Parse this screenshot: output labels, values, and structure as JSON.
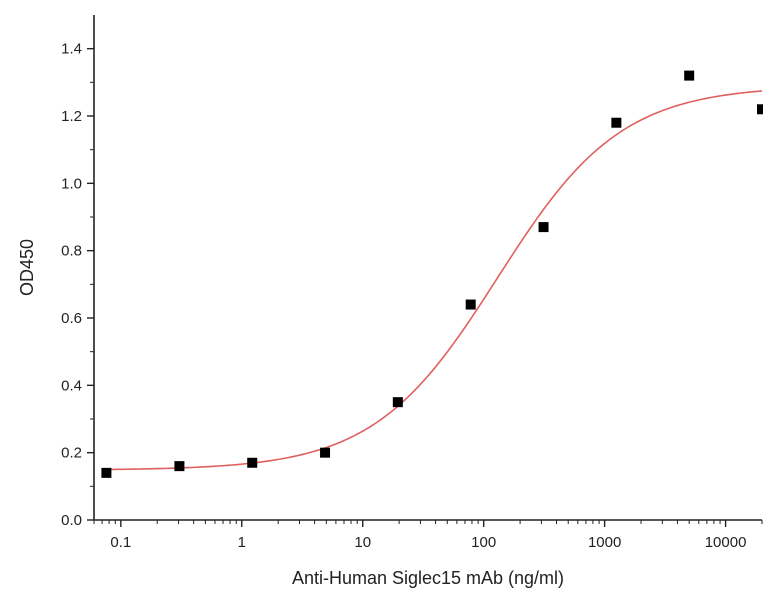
{
  "chart_data": {
    "type": "scatter",
    "title": "",
    "xlabel": "Anti-Human Siglec15 mAb (ng/ml)",
    "ylabel": "OD450",
    "x_scale": "log",
    "xlim": [
      0.06,
      20000
    ],
    "ylim": [
      0.0,
      1.5
    ],
    "x_ticks": [
      0.1,
      1,
      10,
      100,
      1000,
      10000
    ],
    "x_tick_labels": [
      "0.1",
      "1",
      "10",
      "100",
      "1000",
      "10000"
    ],
    "y_ticks": [
      0.0,
      0.2,
      0.4,
      0.6,
      0.8,
      1.0,
      1.2,
      1.4
    ],
    "y_tick_labels": [
      "0.0",
      "0.2",
      "0.4",
      "0.6",
      "0.8",
      "1.0",
      "1.2",
      "1.4"
    ],
    "grid": false,
    "legend": "none",
    "series": [
      {
        "kind": "points",
        "marker": "square",
        "color": "#000000",
        "x": [
          0.076,
          0.305,
          1.22,
          4.88,
          19.5,
          78.1,
          312.5,
          1250,
          5000,
          20000
        ],
        "y": [
          0.14,
          0.16,
          0.17,
          0.2,
          0.35,
          0.64,
          0.87,
          1.18,
          1.32,
          1.22
        ]
      },
      {
        "kind": "fit",
        "color": "#e06060",
        "model": "4PL",
        "bottom": 0.148,
        "top": 1.29,
        "ec50": 130,
        "hill": 0.85,
        "x_range": [
          0.076,
          20000
        ]
      }
    ]
  }
}
